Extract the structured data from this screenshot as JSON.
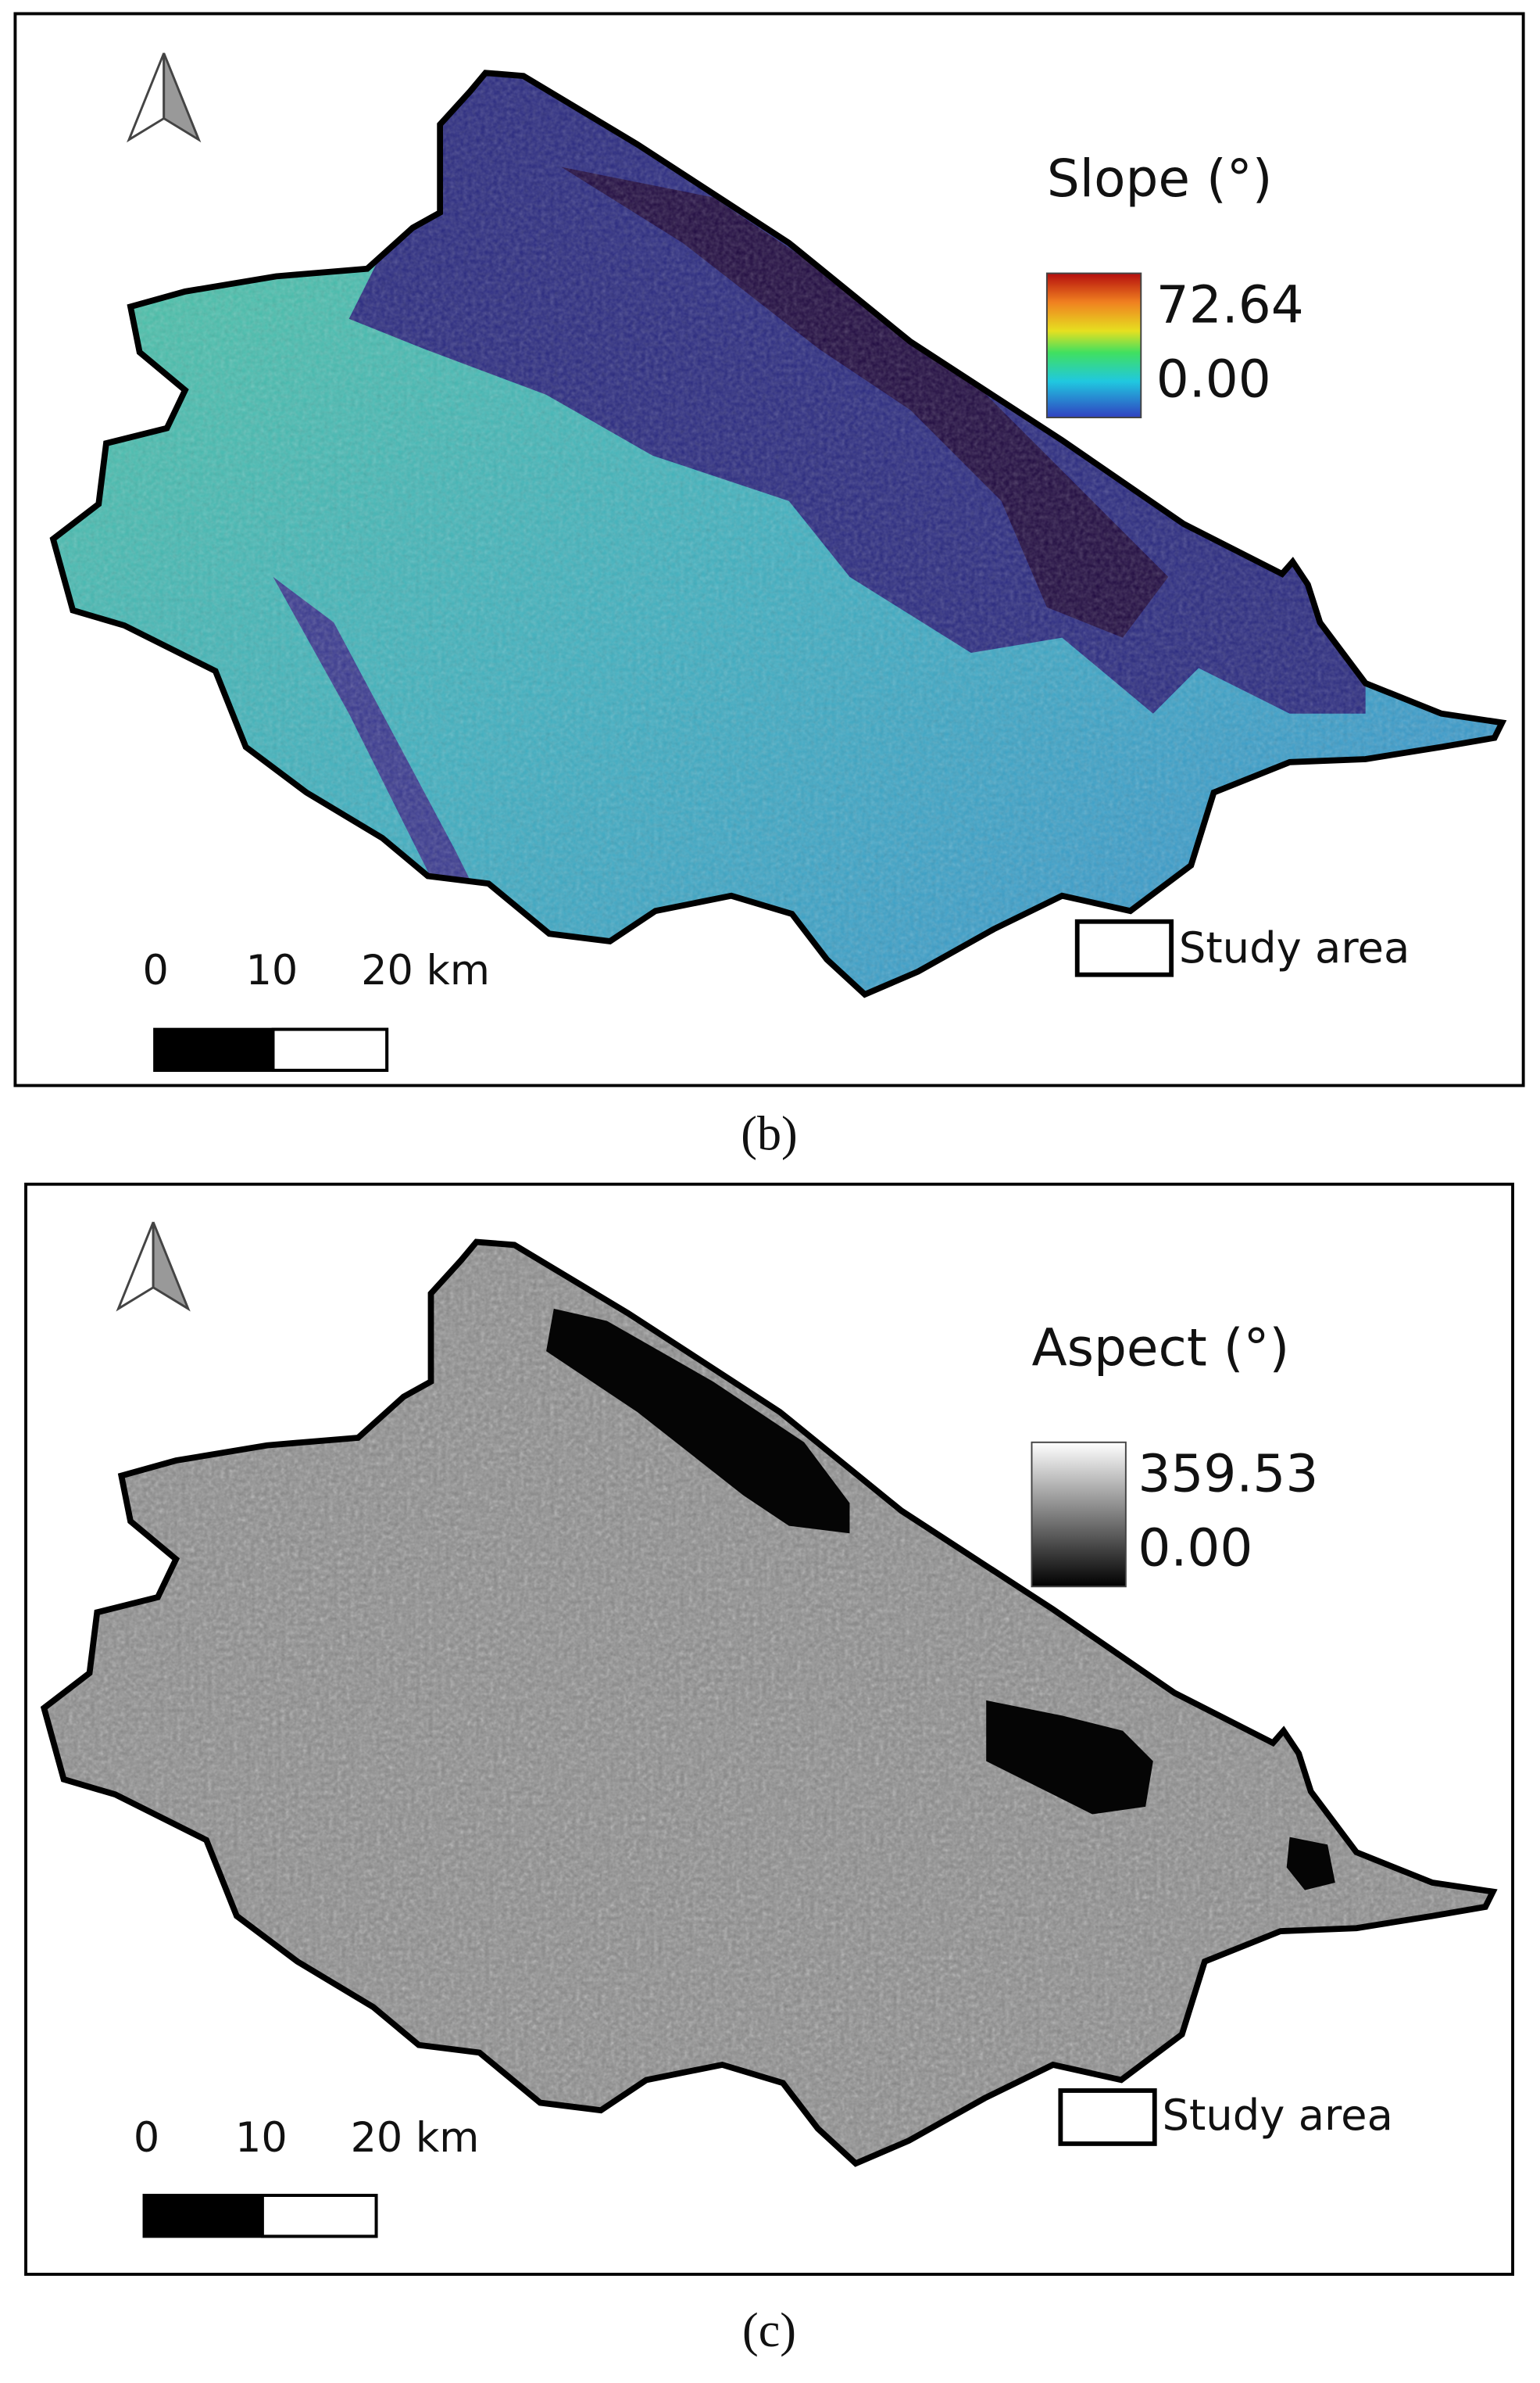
{
  "panels": [
    {
      "legend_title": "Slope (°)",
      "legend_max": "72.64",
      "legend_min": "0.00",
      "boundary_label": "Study area",
      "scale_labels": [
        "0",
        "10",
        "20 km"
      ],
      "caption": "(b)"
    },
    {
      "legend_title": "Aspect (°)",
      "legend_max": "359.53",
      "legend_min": "0.00",
      "boundary_label": "Study area",
      "scale_labels": [
        "0",
        "10",
        "20 km"
      ],
      "caption": "(c)"
    }
  ]
}
